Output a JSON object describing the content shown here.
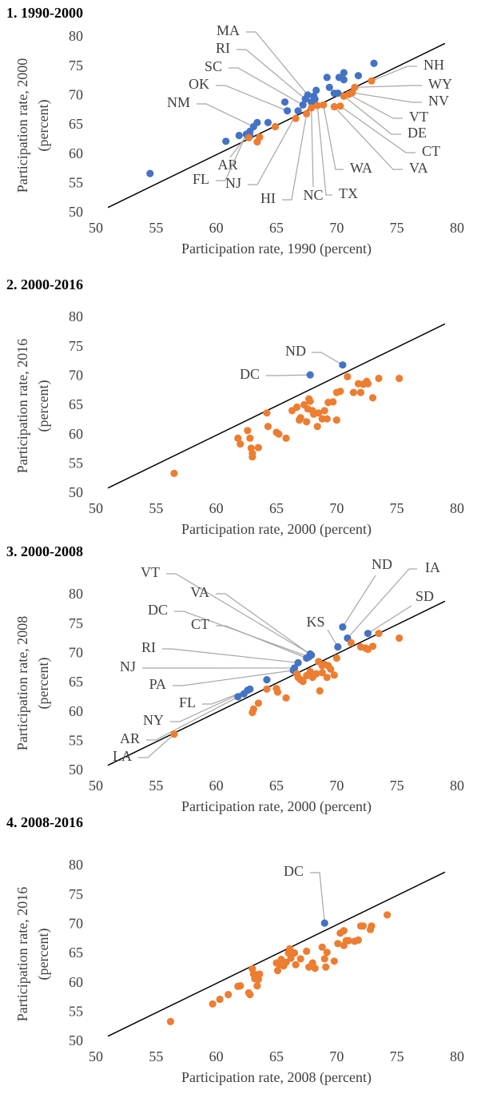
{
  "chart_data": [
    {
      "type": "scatter",
      "title": "1. 1990-2000",
      "x_label": "Participation rate, 1990 (percent)",
      "y_label": [
        "Participation rate, 2000",
        "(percent)"
      ],
      "xlim": [
        50,
        80
      ],
      "ylim": [
        50,
        80
      ],
      "xticks": [
        50,
        55,
        60,
        65,
        70,
        75,
        80
      ],
      "yticks": [
        50,
        55,
        60,
        65,
        70,
        75,
        80
      ],
      "reference_line": [
        [
          51,
          51
        ],
        [
          79,
          79
        ]
      ],
      "series": [
        {
          "color": "#4472c4",
          "x": [
            67.6,
            67.4,
            67.2,
            65.9,
            63.1,
            62.8,
            62.5,
            66.8,
            54.5,
            60.8,
            61.9,
            62.8,
            63.4,
            64.3,
            65.7,
            67.9,
            68.1,
            68.3,
            68.2,
            69.2,
            69.4,
            69.8,
            70.2,
            70.6,
            70.6,
            71.8,
            73.1,
            70.1
          ],
          "values": [
            70.2,
            69.5,
            68.5,
            67.5,
            64.8,
            64.0,
            63.5,
            67.5,
            56.8,
            62.3,
            63.3,
            63.2,
            65.5,
            65.5,
            69.0,
            69.0,
            70.0,
            71.0,
            69.5,
            73.2,
            71.5,
            70.5,
            73.2,
            74.0,
            72.8,
            73.5,
            75.6,
            70.5
          ],
          "labels": [
            "MA",
            "RI",
            "SC",
            "OK",
            "NM",
            "AR",
            "FL",
            "NJ",
            null,
            null,
            null,
            null,
            null,
            null,
            null,
            null,
            null,
            null,
            null,
            null,
            null,
            null,
            null,
            null,
            null,
            null,
            null,
            null
          ]
        },
        {
          "color": "#ed7d31",
          "x": [
            67.5,
            67.9,
            68.4,
            68.9,
            72.9,
            71.5,
            71.3,
            71.0,
            70.6,
            70.3,
            69.8,
            63.4,
            63.6,
            64.9,
            66.6,
            62.7
          ],
          "values": [
            67.0,
            68.0,
            68.4,
            68.5,
            72.6,
            71.5,
            70.6,
            70.3,
            70.0,
            68.3,
            68.2,
            62.2,
            63.0,
            64.8,
            66.2,
            62.9
          ],
          "labels": [
            "HI",
            "NC",
            "TX",
            "WA",
            "NH",
            "WY",
            "NV",
            "VT",
            "DE",
            "CT",
            "VA",
            null,
            null,
            null,
            null,
            null
          ]
        }
      ]
    },
    {
      "type": "scatter",
      "title": "2. 2000-2016",
      "x_label": "Participation rate, 2000 (percent)",
      "y_label": [
        "Participation rate, 2016",
        "(percent)"
      ],
      "xlim": [
        50,
        80
      ],
      "ylim": [
        50,
        80
      ],
      "xticks": [
        50,
        55,
        60,
        65,
        70,
        75,
        80
      ],
      "yticks": [
        50,
        55,
        60,
        65,
        70,
        75,
        80
      ],
      "reference_line": [
        [
          51,
          51
        ],
        [
          79,
          79
        ]
      ],
      "series": [
        {
          "color": "#4472c4",
          "x": [
            70.5,
            67.8
          ],
          "values": [
            72.0,
            70.3
          ],
          "labels": [
            "ND",
            "DC"
          ]
        },
        {
          "color": "#ed7d31",
          "x": [
            56.5,
            61.8,
            62.0,
            62.6,
            62.8,
            62.9,
            63.0,
            63.0,
            63.5,
            64.2,
            64.3,
            65.0,
            65.2,
            65.8,
            66.3,
            66.7,
            66.9,
            67.0,
            67.3,
            67.5,
            67.6,
            67.8,
            68.0,
            68.1,
            68.4,
            68.5,
            68.8,
            69.0,
            69.2,
            69.3,
            69.7,
            70.0,
            70.0,
            70.3,
            70.9,
            71.4,
            71.8,
            72.0,
            72.2,
            72.5,
            72.6,
            73.0,
            73.5,
            75.2,
            67.7
          ],
          "values": [
            53.5,
            59.5,
            58.5,
            60.8,
            59.5,
            57.8,
            56.9,
            56.3,
            57.9,
            63.8,
            61.5,
            60.5,
            60.2,
            59.5,
            64.2,
            64.8,
            62.6,
            63.0,
            65.2,
            62.3,
            64.5,
            65.8,
            64.2,
            63.6,
            61.5,
            63.8,
            62.8,
            64.2,
            62.8,
            65.6,
            65.7,
            62.6,
            67.3,
            67.5,
            70.0,
            67.3,
            68.8,
            67.3,
            68.7,
            69.2,
            68.8,
            66.4,
            69.7,
            69.7,
            66.2
          ]
        }
      ]
    },
    {
      "type": "scatter",
      "title": "3. 2000-2008",
      "x_label": "Participation rate, 2000 (percent)",
      "y_label": [
        "Participation rate, 2008",
        "(percent)"
      ],
      "xlim": [
        50,
        80
      ],
      "ylim": [
        50,
        80
      ],
      "xticks": [
        50,
        55,
        60,
        65,
        70,
        75,
        80
      ],
      "yticks": [
        50,
        55,
        60,
        65,
        70,
        75,
        80
      ],
      "reference_line": [
        [
          51,
          51
        ],
        [
          79,
          79
        ]
      ],
      "series": [
        {
          "color": "#4472c4",
          "x": [
            67.8,
            67.9,
            67.7,
            67.5,
            66.8,
            66.5,
            66.4,
            62.8,
            62.6,
            62.3,
            70.1,
            70.5,
            70.9,
            72.6,
            61.8,
            64.2
          ],
          "values": [
            70.0,
            69.8,
            69.5,
            69.3,
            68.5,
            67.6,
            67.2,
            64.0,
            63.8,
            63.2,
            71.2,
            74.6,
            72.7,
            73.5,
            62.7,
            65.6
          ],
          "labels": [
            "VT",
            "VA",
            "DC",
            "CT",
            "RI",
            "NJ",
            "PA",
            "FL",
            "NY",
            "AR",
            "KS",
            "ND",
            "IA",
            "SD",
            null,
            null
          ]
        },
        {
          "color": "#ed7d31",
          "x": [
            56.5,
            63.0,
            63.1,
            63.5,
            64.2,
            65.0,
            65.1,
            65.8,
            66.7,
            66.8,
            67.0,
            67.2,
            67.5,
            67.8,
            68.0,
            68.3,
            68.5,
            68.6,
            68.8,
            69.0,
            69.2,
            69.5,
            69.8,
            70.0,
            71.2,
            72.0,
            72.4,
            72.6,
            73.0,
            73.5,
            75.2,
            68.8,
            69.3
          ],
          "values": [
            56.3,
            60.0,
            60.6,
            61.6,
            64.0,
            64.1,
            63.5,
            62.5,
            66.6,
            66.0,
            65.6,
            65.3,
            66.3,
            67.0,
            66.0,
            66.6,
            68.7,
            63.7,
            66.8,
            68.2,
            66.0,
            67.4,
            66.4,
            69.3,
            71.9,
            71.2,
            71.0,
            70.8,
            71.3,
            73.5,
            72.7,
            68.0,
            68.0
          ],
          "labels": [
            "LA",
            null,
            null,
            null,
            null,
            null,
            null,
            null,
            null,
            null,
            null,
            null,
            null,
            null,
            null,
            null,
            null,
            null,
            null,
            null,
            null,
            null,
            null,
            null,
            null,
            null,
            null,
            null,
            null,
            null,
            null,
            null,
            null
          ]
        }
      ]
    },
    {
      "type": "scatter",
      "title": "4. 2008-2016",
      "x_label": "Participation rate, 2008 (percent)",
      "y_label": [
        "Participation rate, 2016",
        "(percent)"
      ],
      "xlim": [
        50,
        80
      ],
      "ylim": [
        50,
        80
      ],
      "xticks": [
        50,
        55,
        60,
        65,
        70,
        75,
        80
      ],
      "yticks": [
        50,
        55,
        60,
        65,
        70,
        75,
        80
      ],
      "reference_line": [
        [
          51,
          51
        ],
        [
          79,
          79
        ]
      ],
      "series": [
        {
          "color": "#4472c4",
          "x": [
            69.0
          ],
          "values": [
            70.3
          ],
          "labels": [
            "DC"
          ]
        },
        {
          "color": "#ed7d31",
          "x": [
            56.2,
            59.7,
            60.3,
            61.0,
            61.8,
            62.0,
            62.7,
            62.8,
            63.1,
            63.2,
            63.3,
            63.4,
            63.5,
            63.6,
            65.0,
            65.1,
            65.3,
            65.4,
            65.6,
            65.8,
            66.0,
            66.1,
            66.2,
            66.5,
            66.6,
            67.0,
            67.5,
            67.7,
            68.0,
            68.2,
            68.8,
            69.0,
            69.1,
            69.2,
            69.8,
            70.1,
            70.3,
            70.6,
            70.6,
            70.8,
            71.0,
            71.5,
            71.8,
            72.0,
            72.2,
            72.8,
            72.9,
            74.2,
            63.0
          ],
          "values": [
            53.5,
            56.5,
            57.3,
            58.1,
            59.5,
            59.6,
            58.4,
            58.1,
            61.6,
            60.8,
            61.5,
            59.6,
            60.7,
            61.6,
            63.5,
            62.2,
            63.2,
            64.1,
            63.0,
            63.6,
            65.2,
            65.9,
            64.3,
            65.2,
            63.2,
            64.2,
            65.5,
            62.8,
            63.5,
            62.6,
            66.2,
            64.2,
            62.8,
            65.3,
            63.8,
            66.8,
            68.6,
            69.0,
            66.5,
            67.3,
            67.3,
            67.2,
            67.4,
            69.8,
            69.8,
            69.2,
            69.8,
            71.7,
            62.5
          ]
        }
      ]
    }
  ]
}
